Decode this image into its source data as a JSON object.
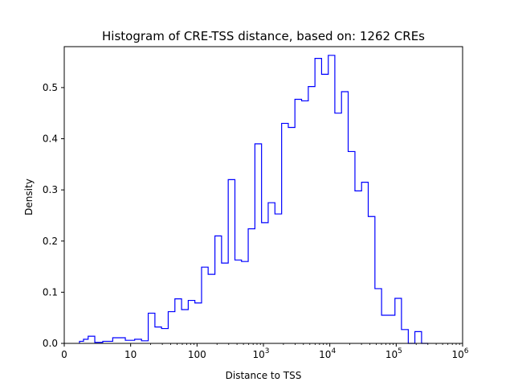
{
  "chart_data": {
    "type": "histogram",
    "title": "Histogram of CRE-TSS distance, based on: 1262 CREs",
    "xlabel": "Distance to TSS",
    "ylabel": "Density",
    "xscale": "symlog",
    "xlim": [
      0,
      1000000
    ],
    "ylim": [
      0,
      0.58
    ],
    "x_ticks": [
      {
        "value": 0,
        "label": "0",
        "exp": ""
      },
      {
        "value": 10,
        "label": "10",
        "exp": ""
      },
      {
        "value": 100,
        "label": "100",
        "exp": ""
      },
      {
        "value": 1000,
        "label": "10",
        "exp": "3"
      },
      {
        "value": 10000,
        "label": "10",
        "exp": "4"
      },
      {
        "value": 100000,
        "label": "10",
        "exp": "5"
      },
      {
        "value": 1000000,
        "label": "10",
        "exp": "6"
      }
    ],
    "y_ticks": [
      {
        "value": 0.0,
        "label": "0.0"
      },
      {
        "value": 0.1,
        "label": "0.1"
      },
      {
        "value": 0.2,
        "label": "0.2"
      },
      {
        "value": 0.3,
        "label": "0.3"
      },
      {
        "value": 0.4,
        "label": "0.4"
      },
      {
        "value": 0.5,
        "label": "0.5"
      }
    ],
    "bin_edges": [
      2.3,
      2.9,
      3.6,
      4.6,
      5.8,
      7.3,
      9.2,
      11.5,
      14.6,
      18.4,
      23.2,
      29.2,
      36.8,
      46.4,
      58.5,
      73.7,
      92.8,
      117,
      147,
      186,
      234,
      295,
      372,
      468,
      590,
      744,
      937,
      1180,
      1490,
      1880,
      2370,
      2980,
      3760,
      4740,
      5970,
      7520,
      9480,
      11900,
      15000,
      18900,
      23900,
      30100,
      37900,
      47800,
      60200,
      75900,
      95700,
      120000,
      152000,
      191000,
      241000,
      303000
    ],
    "values": [
      0.004,
      0.008,
      0.014,
      0.002,
      0.004,
      0.011,
      0.006,
      0.008,
      0.005,
      0.059,
      0.032,
      0.029,
      0.062,
      0.087,
      0.066,
      0.084,
      0.079,
      0.149,
      0.135,
      0.21,
      0.157,
      0.32,
      0.163,
      0.16,
      0.224,
      0.39,
      0.236,
      0.275,
      0.253,
      0.43,
      0.422,
      0.477,
      0.474,
      0.502,
      0.557,
      0.526,
      0.563,
      0.45,
      0.492,
      0.375,
      0.298,
      0.315,
      0.248,
      0.107,
      0.055,
      0.055,
      0.088,
      0.027,
      0.0,
      0.023,
      0.0
    ],
    "color": "#0000ff"
  }
}
